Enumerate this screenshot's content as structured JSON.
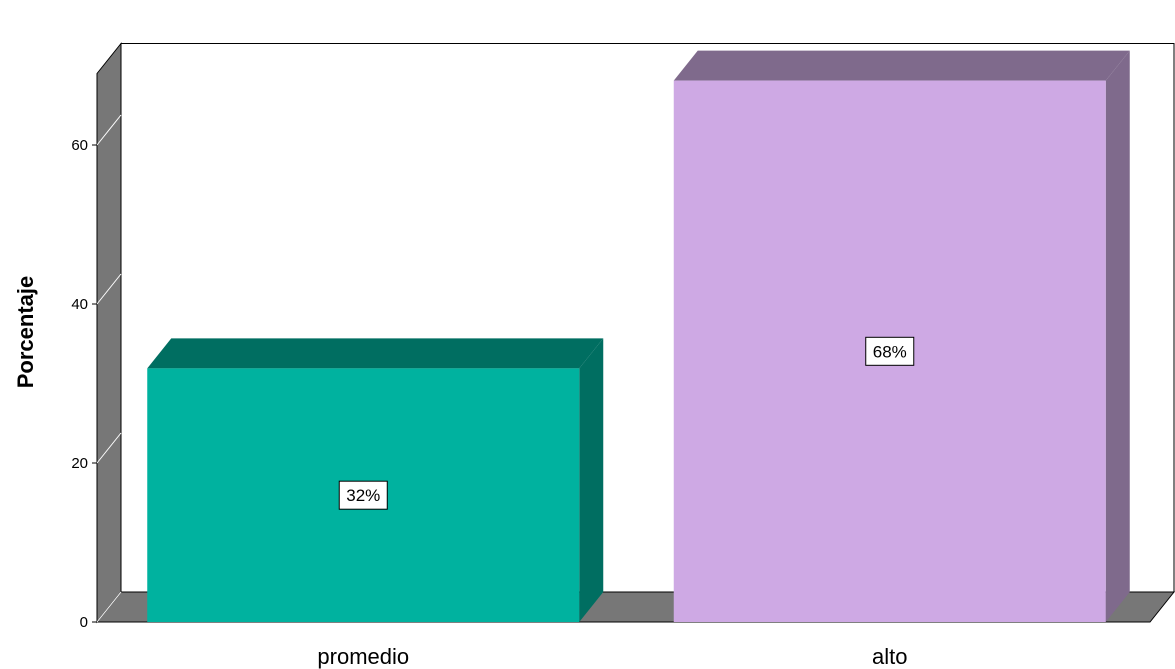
{
  "chart_data": {
    "type": "bar",
    "style": "3d",
    "categories": [
      "promedio",
      "alto"
    ],
    "values": [
      31.9,
      68.1
    ],
    "data_labels": [
      "32%",
      "68%"
    ],
    "ylabel": "Porcentaje",
    "xlabel": "",
    "ylim": [
      0,
      70
    ],
    "yticks": [
      0,
      20,
      40,
      60
    ],
    "grid": false,
    "legend": "none",
    "colors": {
      "bars": [
        "#00b29f",
        "#cea9e4"
      ],
      "bar_tops": [
        "#006e61",
        "#7f6a8c"
      ],
      "bar_sides": [
        "#006e61",
        "#7f6a8c"
      ],
      "wall": "#777777",
      "floor": "#777777"
    }
  }
}
